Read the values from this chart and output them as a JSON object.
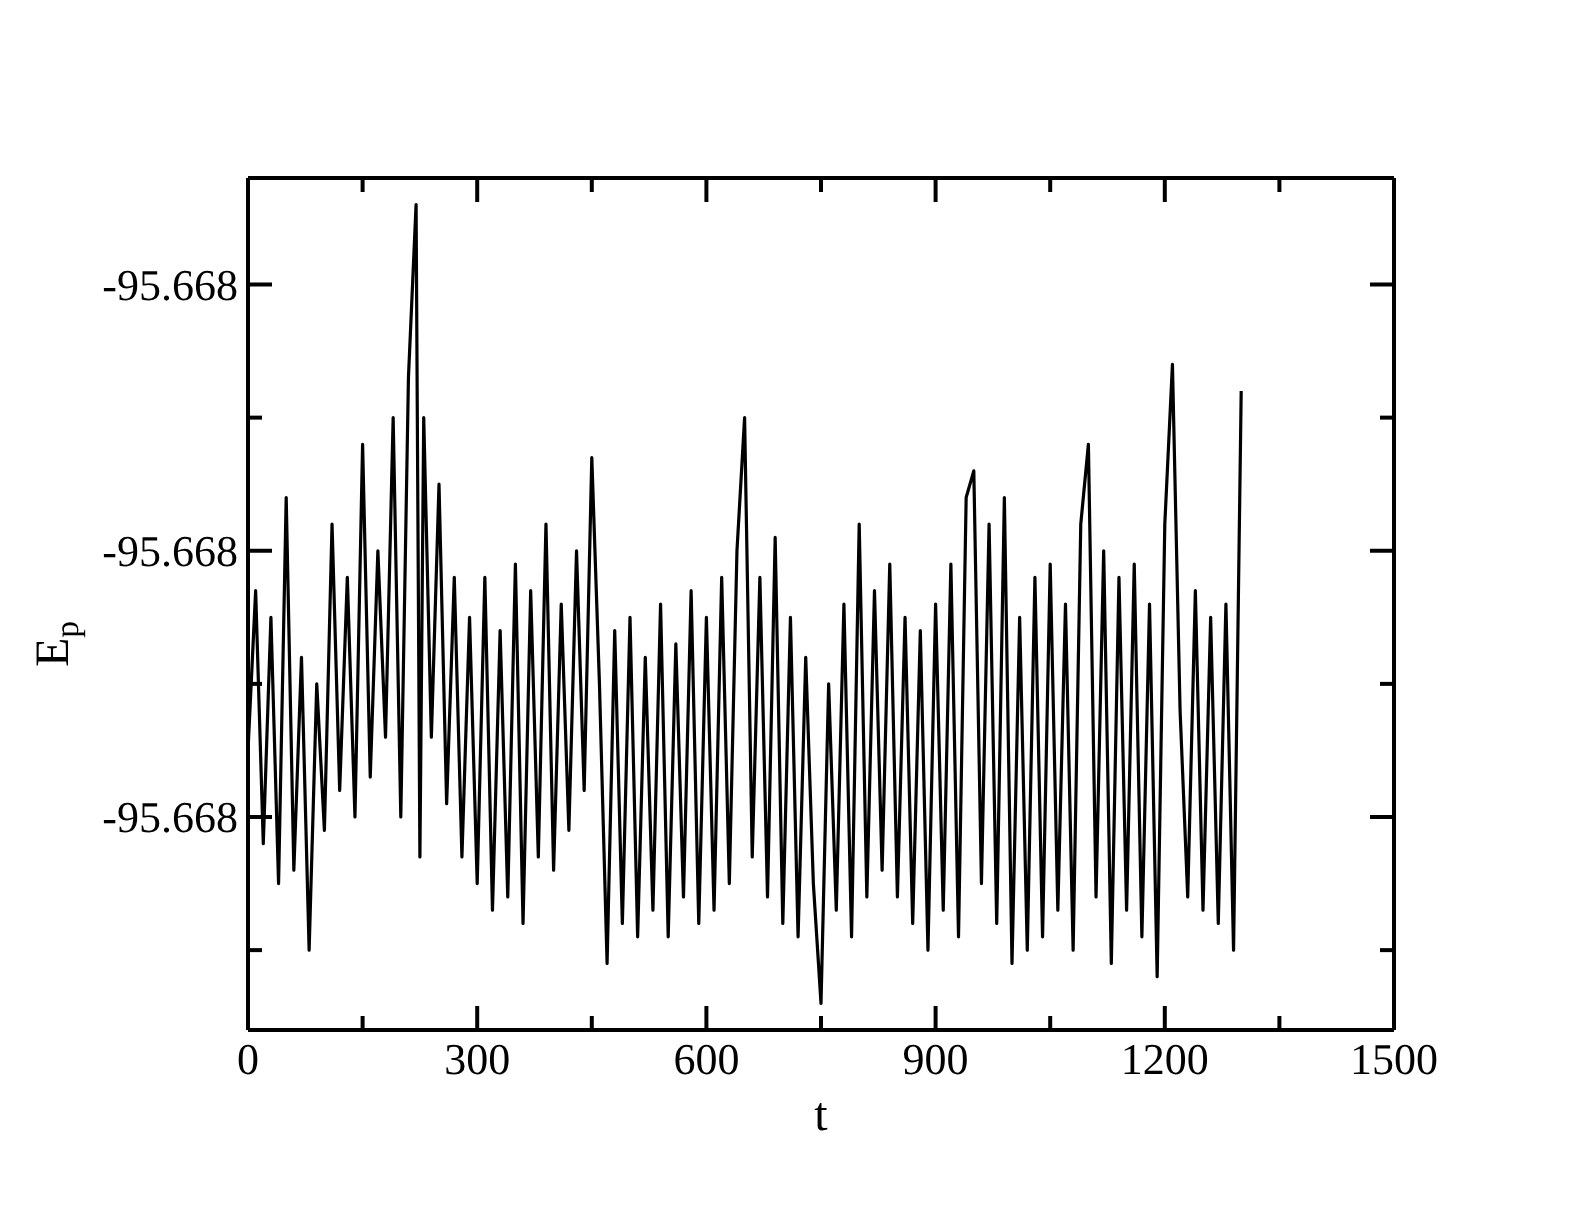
{
  "chart_data": {
    "type": "line",
    "xlabel": "t",
    "ylabel": "E$_{p}$",
    "x": [
      0,
      10,
      20,
      30,
      40,
      50,
      60,
      70,
      80,
      90,
      100,
      110,
      120,
      130,
      140,
      150,
      160,
      170,
      180,
      190,
      200,
      210,
      220,
      225,
      230,
      240,
      250,
      260,
      270,
      280,
      290,
      300,
      310,
      320,
      330,
      340,
      350,
      360,
      370,
      380,
      390,
      400,
      410,
      420,
      430,
      440,
      450,
      460,
      470,
      480,
      490,
      500,
      510,
      520,
      530,
      540,
      550,
      560,
      570,
      580,
      590,
      600,
      610,
      620,
      630,
      640,
      650,
      660,
      670,
      680,
      690,
      700,
      710,
      720,
      730,
      740,
      750,
      760,
      770,
      780,
      790,
      800,
      810,
      820,
      830,
      840,
      850,
      860,
      870,
      880,
      890,
      900,
      910,
      920,
      930,
      940,
      950,
      960,
      970,
      980,
      990,
      1000,
      1010,
      1020,
      1030,
      1040,
      1050,
      1060,
      1070,
      1080,
      1090,
      1100,
      1110,
      1120,
      1130,
      1140,
      1150,
      1160,
      1170,
      1180,
      1190,
      1200,
      1210,
      1220,
      1230,
      1240,
      1250,
      1260,
      1270,
      1280,
      1290,
      1300
    ],
    "series": [
      {
        "color": "#000000",
        "values": [
          -95.66795,
          -95.66783,
          -95.66802,
          -95.66785,
          -95.66805,
          -95.66776,
          -95.66804,
          -95.66788,
          -95.6681,
          -95.6679,
          -95.66801,
          -95.66778,
          -95.66798,
          -95.66782,
          -95.668,
          -95.66772,
          -95.66797,
          -95.6678,
          -95.66794,
          -95.6677,
          -95.668,
          -95.66767,
          -95.66754,
          -95.66803,
          -95.6677,
          -95.66794,
          -95.66775,
          -95.66799,
          -95.66782,
          -95.66803,
          -95.66785,
          -95.66805,
          -95.66782,
          -95.66807,
          -95.66786,
          -95.66806,
          -95.66781,
          -95.66808,
          -95.66783,
          -95.66803,
          -95.66778,
          -95.66804,
          -95.66784,
          -95.66801,
          -95.6678,
          -95.66798,
          -95.66773,
          -95.6679,
          -95.66811,
          -95.66786,
          -95.66808,
          -95.66785,
          -95.66809,
          -95.66788,
          -95.66807,
          -95.66784,
          -95.66809,
          -95.66787,
          -95.66806,
          -95.66783,
          -95.66808,
          -95.66785,
          -95.66807,
          -95.66782,
          -95.66805,
          -95.6678,
          -95.6677,
          -95.66803,
          -95.66782,
          -95.66806,
          -95.66779,
          -95.66808,
          -95.66785,
          -95.66809,
          -95.66788,
          -95.66805,
          -95.66814,
          -95.6679,
          -95.66807,
          -95.66784,
          -95.66809,
          -95.66778,
          -95.66806,
          -95.66783,
          -95.66804,
          -95.66781,
          -95.66806,
          -95.66785,
          -95.66808,
          -95.66786,
          -95.6681,
          -95.66784,
          -95.66807,
          -95.66781,
          -95.66809,
          -95.66776,
          -95.66774,
          -95.66805,
          -95.66778,
          -95.66808,
          -95.66776,
          -95.66811,
          -95.66785,
          -95.6681,
          -95.66782,
          -95.66809,
          -95.66781,
          -95.66807,
          -95.66784,
          -95.6681,
          -95.66778,
          -95.66772,
          -95.66806,
          -95.6678,
          -95.66811,
          -95.66782,
          -95.66807,
          -95.66781,
          -95.66809,
          -95.66784,
          -95.66812,
          -95.66778,
          -95.66766,
          -95.66792,
          -95.66806,
          -95.66783,
          -95.66807,
          -95.66785,
          -95.66808,
          -95.66784,
          -95.6681,
          -95.66768
        ]
      }
    ],
    "xlim": [
      0,
      1500
    ],
    "xticks": [
      0,
      {
        "value": 150,
        "label": null
      },
      300,
      {
        "value": 450,
        "label": null
      },
      600,
      {
        "value": 750,
        "label": null
      },
      900,
      {
        "value": 1050,
        "label": null
      },
      1200,
      {
        "value": 1350,
        "label": null
      },
      1500
    ],
    "ylim": [
      -95.66816,
      -95.66752
    ],
    "yticks": [
      {
        "value": -95.6681,
        "label": null
      },
      {
        "value": -95.668,
        "label": "-95.668"
      },
      {
        "value": -95.6679,
        "label": null
      },
      {
        "value": -95.6678,
        "label": "-95.668"
      },
      {
        "value": -95.6677,
        "label": null
      },
      {
        "value": -95.6676,
        "label": "-95.668"
      }
    ]
  }
}
